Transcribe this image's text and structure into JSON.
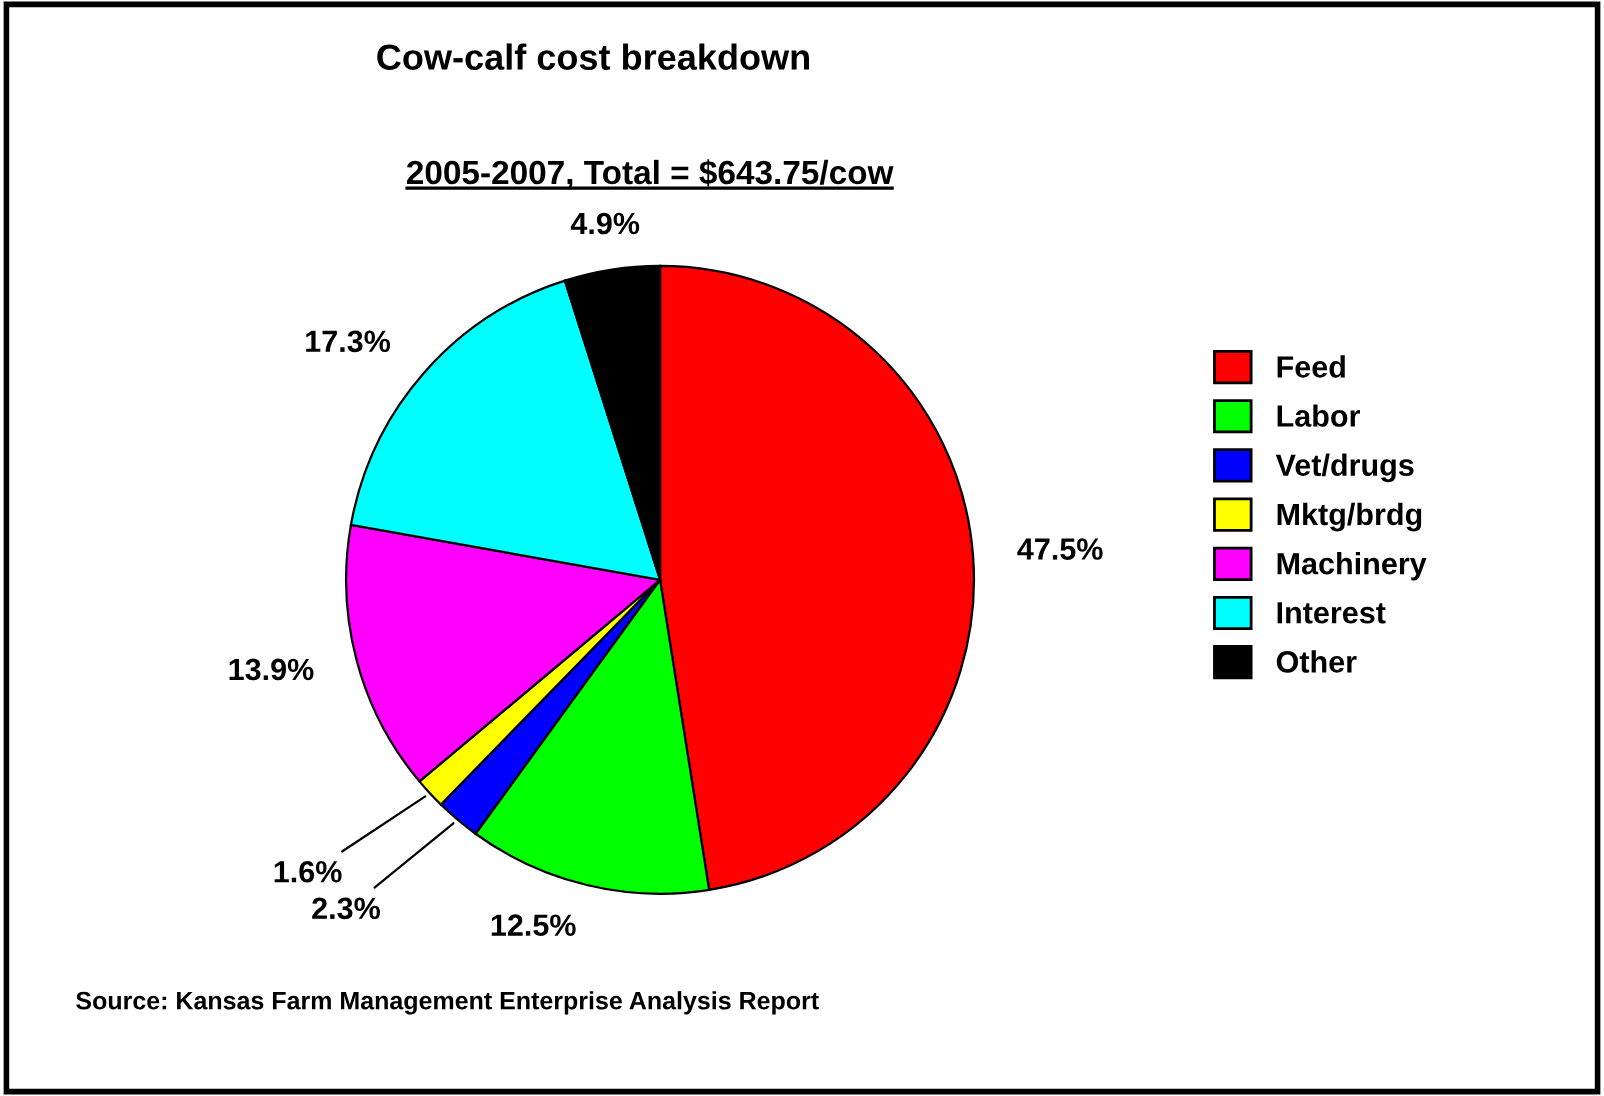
{
  "chart_data": {
    "type": "pie",
    "title": "Cow-calf cost breakdown",
    "subtitle": "2005-2007, Total = $643.75/cow",
    "categories": [
      "Feed",
      "Labor",
      "Vet/drugs",
      "Mktg/brdg",
      "Machinery",
      "Interest",
      "Other"
    ],
    "values": [
      47.5,
      12.5,
      2.3,
      1.6,
      13.9,
      17.3,
      4.9
    ],
    "colors": [
      "#ff0000",
      "#00ff00",
      "#0000ff",
      "#ffff00",
      "#ff00ff",
      "#00ffff",
      "#000000"
    ],
    "value_labels": [
      "47.5%",
      "12.5%",
      "2.3%",
      "1.6%",
      "13.9%",
      "17.3%",
      "4.9%"
    ],
    "legend": "right",
    "annotations": [
      "Source: Kansas Farm Management Enterprise Analysis Report"
    ]
  }
}
